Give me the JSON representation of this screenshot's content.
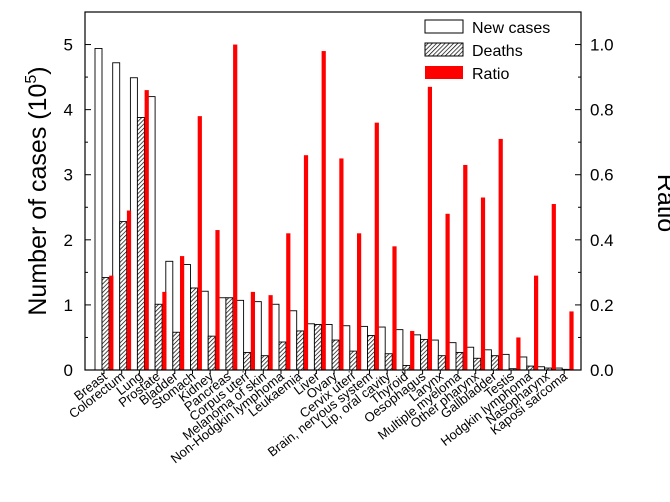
{
  "chart_data": {
    "type": "bar",
    "title": "",
    "ylabel_left_main": "Number of cases (10",
    "ylabel_left_sup": "5",
    "ylabel_left_end": ")",
    "ylabel_right": "Ratio",
    "ylim_left": [
      0,
      5.5
    ],
    "ylim_right": [
      0,
      1.1
    ],
    "yticks_left": [
      "0",
      "1",
      "2",
      "3",
      "4",
      "5"
    ],
    "yticks_right": [
      "0.0",
      "0.2",
      "0.4",
      "0.6",
      "0.8",
      "1.0"
    ],
    "grid": false,
    "legend_position": "top-right",
    "categories": [
      "Breast",
      "Colorectum",
      "Lung",
      "Prostate",
      "Bladder",
      "Stomach",
      "Kidney",
      "Pancreas",
      "Corpus uteri",
      "Melanoma of skin",
      "Non-Hodgkin lymphoma",
      "Leukaemia",
      "Liver",
      "Ovary",
      "Cervix uteri",
      "Brain, nervous system",
      "Lip, oral cavity",
      "Thyroid",
      "Oesophagus",
      "Larynx",
      "Multiple myeloma",
      "Other pharynx",
      "Gallbladder",
      "Testis",
      "Hodgkin lymphoma",
      "Nasopharynx",
      "Kaposi sarcoma"
    ],
    "series": [
      {
        "name": "New cases",
        "axis": "left",
        "style": "hollow",
        "values": [
          4.94,
          4.72,
          4.49,
          4.2,
          1.67,
          1.62,
          1.21,
          1.11,
          1.07,
          1.05,
          1.01,
          0.91,
          0.71,
          0.7,
          0.68,
          0.67,
          0.66,
          0.62,
          0.54,
          0.46,
          0.42,
          0.35,
          0.31,
          0.24,
          0.2,
          0.05,
          0.03
        ]
      },
      {
        "name": "Deaths",
        "axis": "left",
        "style": "hatched",
        "values": [
          1.42,
          2.28,
          3.88,
          1.01,
          0.58,
          1.26,
          0.52,
          1.11,
          0.27,
          0.22,
          0.43,
          0.6,
          0.7,
          0.46,
          0.29,
          0.53,
          0.25,
          0.07,
          0.47,
          0.22,
          0.27,
          0.18,
          0.22,
          0.02,
          0.06,
          0.03,
          0.01
        ]
      },
      {
        "name": "Ratio",
        "axis": "right",
        "style": "solid",
        "color": "#ff0000",
        "values": [
          0.29,
          0.49,
          0.86,
          0.24,
          0.35,
          0.78,
          0.43,
          1.0,
          0.24,
          0.23,
          0.42,
          0.66,
          0.98,
          0.65,
          0.42,
          0.76,
          0.38,
          0.12,
          0.87,
          0.48,
          0.63,
          0.53,
          0.71,
          0.1,
          0.29,
          0.51,
          0.18
        ]
      }
    ]
  }
}
